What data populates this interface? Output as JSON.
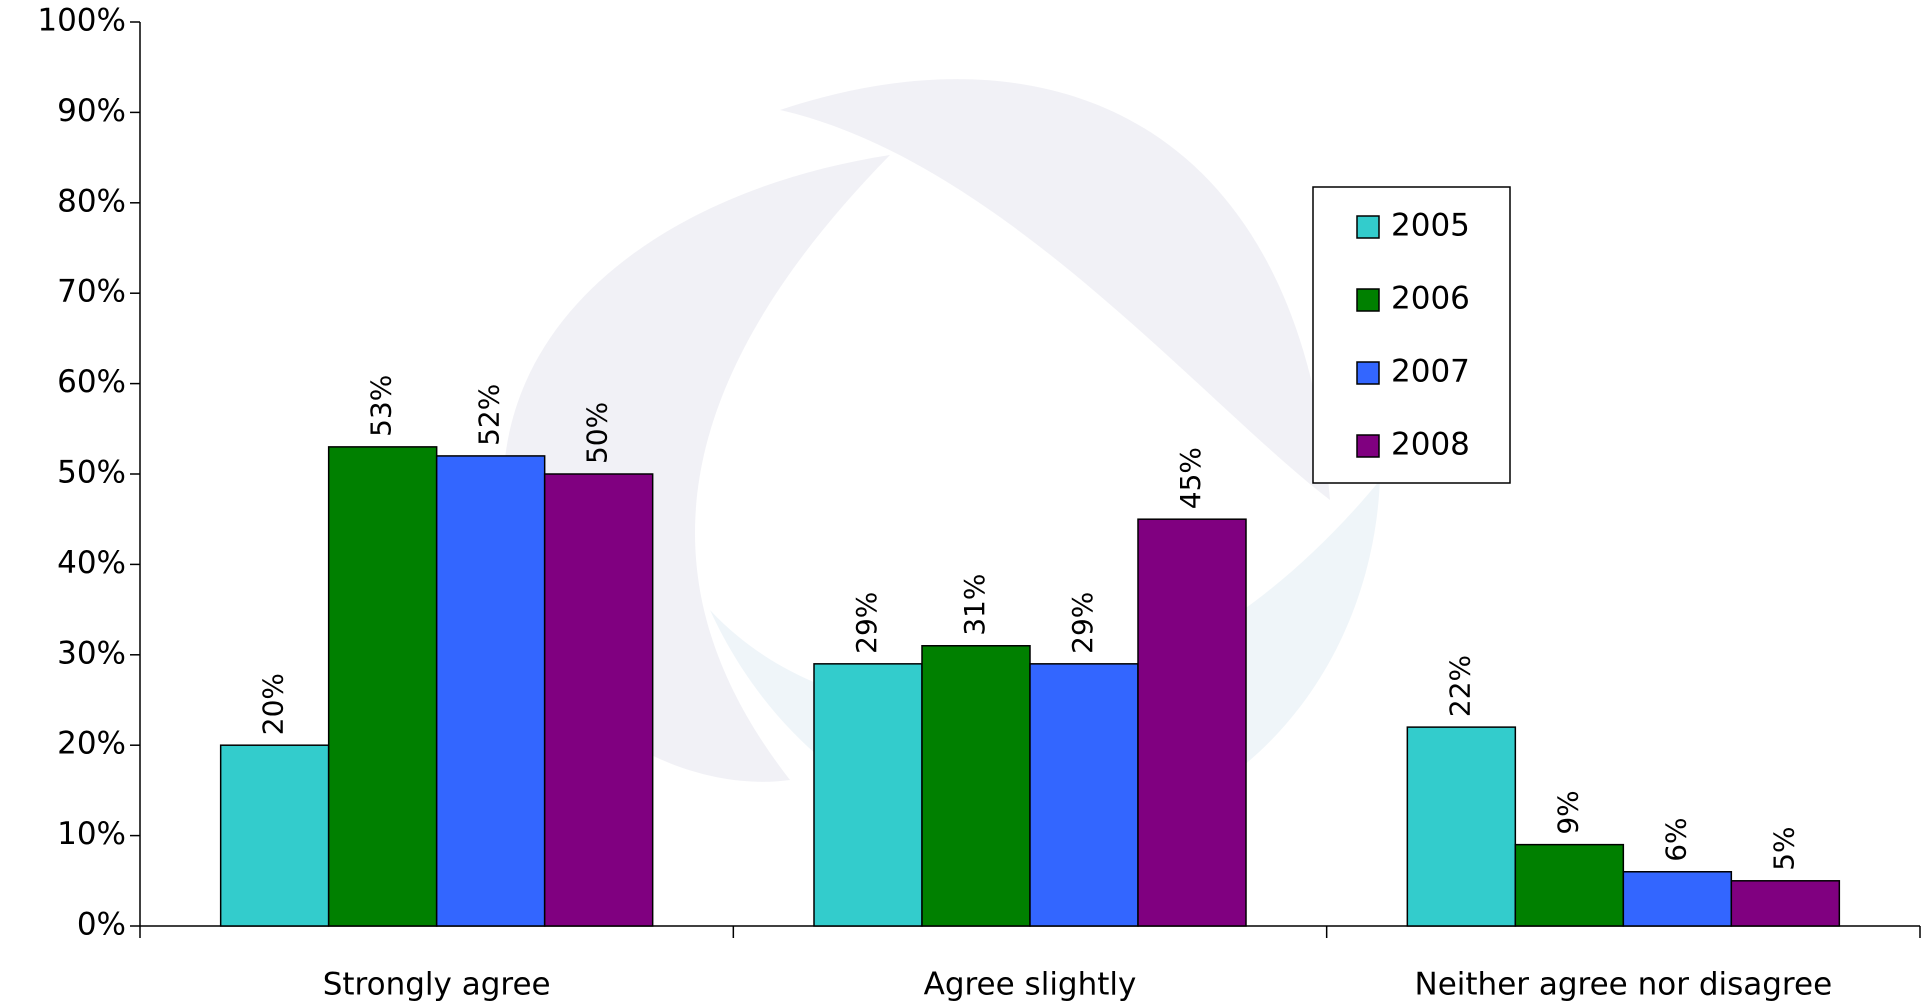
{
  "chart_data": {
    "type": "bar",
    "categories": [
      "Strongly agree",
      "Agree slightly",
      "Neither agree nor disagree"
    ],
    "series": [
      {
        "name": "2005",
        "color": "#33cccc",
        "values": [
          20,
          29,
          22
        ],
        "value_labels": [
          "20%",
          "29%",
          "22%"
        ]
      },
      {
        "name": "2006",
        "color": "#008000",
        "values": [
          53,
          31,
          9
        ],
        "value_labels": [
          "53%",
          "31%",
          "9%"
        ]
      },
      {
        "name": "2007",
        "color": "#3366ff",
        "values": [
          52,
          29,
          6
        ],
        "value_labels": [
          "52%",
          "29%",
          "6%"
        ]
      },
      {
        "name": "2008",
        "color": "#800080",
        "values": [
          50,
          45,
          5
        ],
        "value_labels": [
          "50%",
          "45%",
          "5%"
        ]
      }
    ],
    "ylim": [
      0,
      100
    ],
    "yticks": [
      {
        "value": 0,
        "label": "0%"
      },
      {
        "value": 10,
        "label": "10%"
      },
      {
        "value": 20,
        "label": "20%"
      },
      {
        "value": 30,
        "label": "30%"
      },
      {
        "value": 40,
        "label": "40%"
      },
      {
        "value": 50,
        "label": "50%"
      },
      {
        "value": 60,
        "label": "60%"
      },
      {
        "value": 70,
        "label": "70%"
      },
      {
        "value": 80,
        "label": "80%"
      },
      {
        "value": 90,
        "label": "90%"
      },
      {
        "value": 100,
        "label": "100%"
      }
    ],
    "grid": false,
    "legend": "upper-right"
  }
}
